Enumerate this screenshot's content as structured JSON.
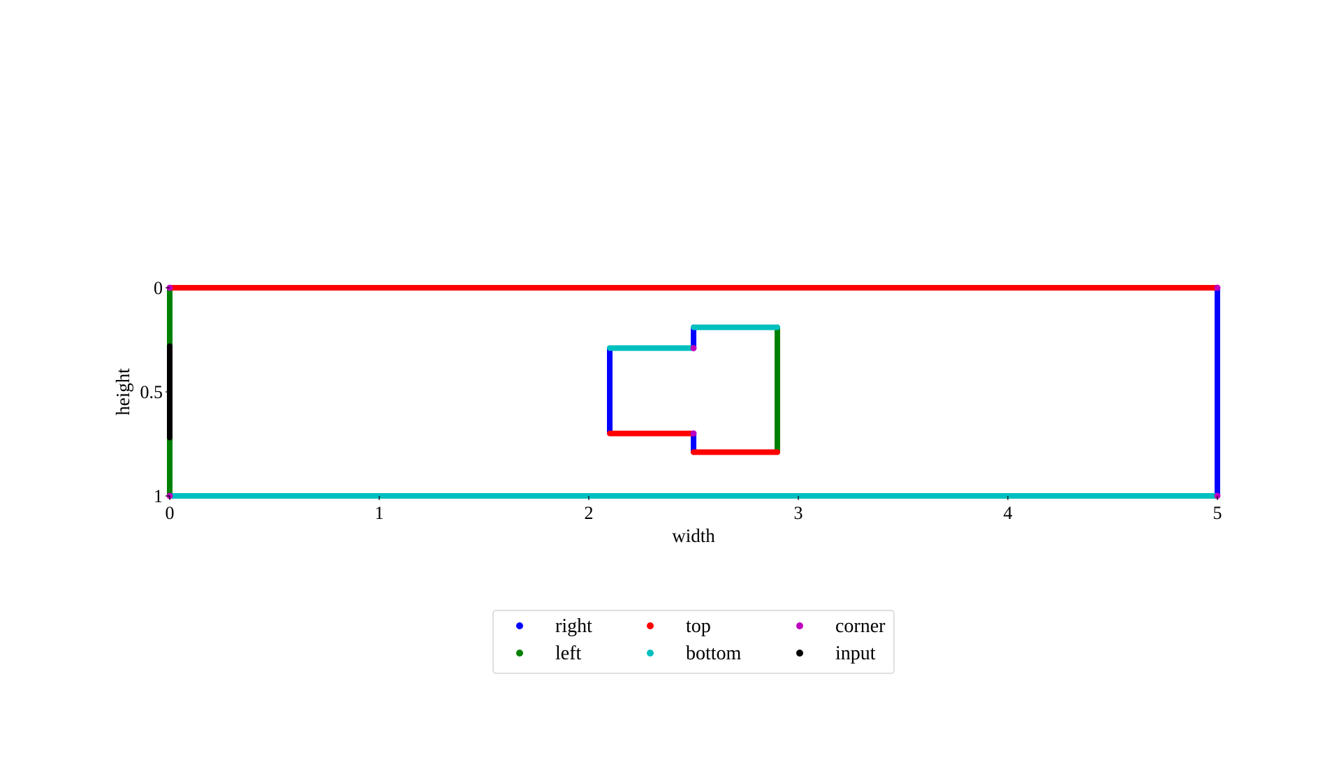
{
  "chart_data": {
    "type": "scatter",
    "xlabel": "width",
    "ylabel": "height",
    "xlim": [
      0,
      5
    ],
    "ylim": [
      1,
      0
    ],
    "y_axis_inverted": true,
    "grid": false,
    "xticks": [
      0,
      1,
      2,
      3,
      4,
      5
    ],
    "yticks": [
      0,
      0.5,
      1
    ],
    "x_tick_labels": [
      "0",
      "1",
      "2",
      "3",
      "4",
      "5"
    ],
    "y_tick_labels": [
      "0",
      "0.5",
      "1"
    ],
    "legend": {
      "placement": "below-center",
      "columns": 3
    },
    "series": [
      {
        "name": "right",
        "color": "#0000ff",
        "segments": [
          {
            "x": [
              5,
              5
            ],
            "y": [
              0,
              1
            ]
          },
          {
            "x": [
              2.1,
              2.1
            ],
            "y": [
              0.29,
              0.7
            ]
          },
          {
            "x": [
              2.5,
              2.5
            ],
            "y": [
              0.19,
              0.29
            ]
          },
          {
            "x": [
              2.5,
              2.5
            ],
            "y": [
              0.7,
              0.79
            ]
          }
        ]
      },
      {
        "name": "left",
        "color": "#008000",
        "segments": [
          {
            "x": [
              0,
              0
            ],
            "y": [
              0,
              0.28
            ]
          },
          {
            "x": [
              0,
              0
            ],
            "y": [
              0.72,
              1
            ]
          },
          {
            "x": [
              2.9,
              2.9
            ],
            "y": [
              0.19,
              0.79
            ]
          }
        ]
      },
      {
        "name": "top",
        "color": "#ff0000",
        "segments": [
          {
            "x": [
              0,
              5
            ],
            "y": [
              0,
              0
            ]
          },
          {
            "x": [
              2.1,
              2.5
            ],
            "y": [
              0.7,
              0.7
            ]
          },
          {
            "x": [
              2.5,
              2.9
            ],
            "y": [
              0.79,
              0.79
            ]
          }
        ]
      },
      {
        "name": "bottom",
        "color": "#00bfbf",
        "segments": [
          {
            "x": [
              0,
              5
            ],
            "y": [
              1,
              1
            ]
          },
          {
            "x": [
              2.1,
              2.5
            ],
            "y": [
              0.29,
              0.29
            ]
          },
          {
            "x": [
              2.5,
              2.9
            ],
            "y": [
              0.19,
              0.19
            ]
          }
        ]
      },
      {
        "name": "corner",
        "color": "#bf00bf",
        "points": [
          {
            "x": 0,
            "y": 0
          },
          {
            "x": 5,
            "y": 0
          },
          {
            "x": 0,
            "y": 1
          },
          {
            "x": 5,
            "y": 1
          },
          {
            "x": 2.5,
            "y": 0.29
          },
          {
            "x": 2.5,
            "y": 0.7
          }
        ]
      },
      {
        "name": "input",
        "color": "#000000",
        "segments": [
          {
            "x": [
              0,
              0
            ],
            "y": [
              0.28,
              0.72
            ]
          }
        ]
      }
    ]
  }
}
